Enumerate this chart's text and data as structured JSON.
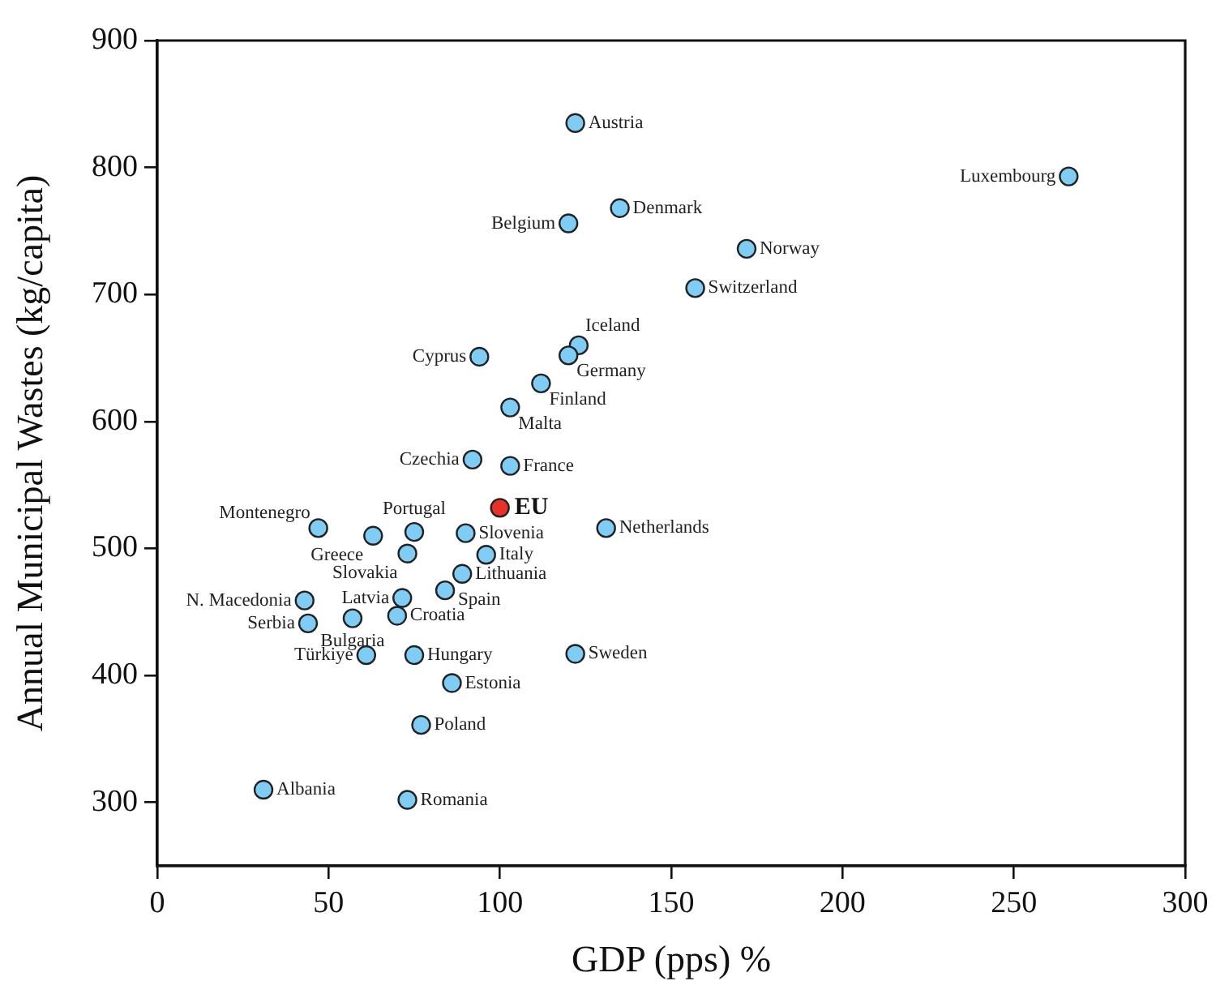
{
  "chart_data": {
    "type": "scatter",
    "xlabel": "GDP (pps) %",
    "ylabel": "Annual Municipal Wastes (kg/capita)",
    "xlim": [
      0,
      300
    ],
    "xticks": [
      0,
      50,
      100,
      150,
      200,
      250,
      300
    ],
    "ylim": [
      250,
      900
    ],
    "yticks": [
      300,
      400,
      500,
      600,
      700,
      800,
      900
    ],
    "grid": false,
    "legend": false,
    "marker": "circle",
    "series": [
      {
        "color": "#7fcdf4",
        "x": [
          122,
          266,
          135,
          120,
          172,
          157,
          123,
          120,
          94,
          112,
          103,
          92,
          103,
          131,
          47,
          63,
          75,
          73,
          90,
          96,
          89,
          84,
          71.5,
          70,
          57,
          43,
          44,
          61,
          75,
          86,
          77,
          31,
          73,
          122
        ],
        "values": [
          835,
          793,
          768,
          756,
          736,
          705,
          660,
          652,
          651,
          630,
          611,
          570,
          565,
          516,
          516,
          510,
          513,
          496,
          512,
          495,
          480,
          467,
          461,
          447,
          445,
          459,
          441,
          416,
          416,
          394,
          361,
          310,
          302,
          417
        ]
      },
      {
        "name": "EU",
        "color": "#e8312b",
        "x": [
          100
        ],
        "values": [
          532
        ]
      }
    ],
    "annotations": [
      {
        "text": "Austria",
        "x": 122,
        "y": 835
      },
      {
        "text": "Luxembourg",
        "x": 266,
        "y": 793
      },
      {
        "text": "Denmark",
        "x": 135,
        "y": 768
      },
      {
        "text": "Belgium",
        "x": 120,
        "y": 756
      },
      {
        "text": "Norway",
        "x": 172,
        "y": 736
      },
      {
        "text": "Switzerland",
        "x": 157,
        "y": 705
      },
      {
        "text": "Iceland",
        "x": 123,
        "y": 660
      },
      {
        "text": "Germany",
        "x": 120,
        "y": 652
      },
      {
        "text": "Cyprus",
        "x": 94,
        "y": 651
      },
      {
        "text": "Finland",
        "x": 112,
        "y": 630
      },
      {
        "text": "Malta",
        "x": 103,
        "y": 611
      },
      {
        "text": "Czechia",
        "x": 92,
        "y": 570
      },
      {
        "text": "France",
        "x": 103,
        "y": 565
      },
      {
        "text": "Netherlands",
        "x": 131,
        "y": 516
      },
      {
        "text": "Montenegro",
        "x": 47,
        "y": 516
      },
      {
        "text": "Greece",
        "x": 63,
        "y": 510
      },
      {
        "text": "Portugal",
        "x": 75,
        "y": 513
      },
      {
        "text": "Slovakia",
        "x": 73,
        "y": 496
      },
      {
        "text": "Slovenia",
        "x": 90,
        "y": 512
      },
      {
        "text": "Italy",
        "x": 96,
        "y": 495
      },
      {
        "text": "Lithuania",
        "x": 89,
        "y": 480
      },
      {
        "text": "Spain",
        "x": 84,
        "y": 467
      },
      {
        "text": "Latvia",
        "x": 71.5,
        "y": 461
      },
      {
        "text": "Croatia",
        "x": 70,
        "y": 447
      },
      {
        "text": "Bulgaria",
        "x": 57,
        "y": 445
      },
      {
        "text": "N. Macedonia",
        "x": 43,
        "y": 459
      },
      {
        "text": "Serbia",
        "x": 44,
        "y": 441
      },
      {
        "text": "Türkiye",
        "x": 61,
        "y": 416
      },
      {
        "text": "Hungary",
        "x": 75,
        "y": 416
      },
      {
        "text": "Estonia",
        "x": 86,
        "y": 394
      },
      {
        "text": "Poland",
        "x": 77,
        "y": 361
      },
      {
        "text": "Albania",
        "x": 31,
        "y": 310
      },
      {
        "text": "Romania",
        "x": 73,
        "y": 302
      },
      {
        "text": "Sweden",
        "x": 122,
        "y": 417
      }
    ]
  }
}
